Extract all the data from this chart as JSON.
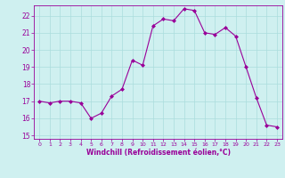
{
  "x": [
    0,
    1,
    2,
    3,
    4,
    5,
    6,
    7,
    8,
    9,
    10,
    11,
    12,
    13,
    14,
    15,
    16,
    17,
    18,
    19,
    20,
    21,
    22,
    23
  ],
  "y": [
    17.0,
    16.9,
    17.0,
    17.0,
    16.9,
    16.0,
    16.3,
    17.3,
    17.7,
    19.4,
    19.1,
    21.4,
    21.8,
    21.7,
    22.4,
    22.3,
    21.0,
    20.9,
    21.3,
    20.8,
    19.0,
    17.2,
    15.6,
    15.5
  ],
  "line_color": "#990099",
  "marker": "D",
  "marker_size": 2.0,
  "bg_color": "#cff0f0",
  "grid_color": "#aadddd",
  "xlabel": "Windchill (Refroidissement éolien,°C)",
  "xlabel_color": "#990099",
  "tick_color": "#990099",
  "ylim": [
    14.8,
    22.6
  ],
  "yticks": [
    15,
    16,
    17,
    18,
    19,
    20,
    21,
    22
  ],
  "xlim": [
    -0.5,
    23.5
  ],
  "xticks": [
    0,
    1,
    2,
    3,
    4,
    5,
    6,
    7,
    8,
    9,
    10,
    11,
    12,
    13,
    14,
    15,
    16,
    17,
    18,
    19,
    20,
    21,
    22,
    23
  ]
}
